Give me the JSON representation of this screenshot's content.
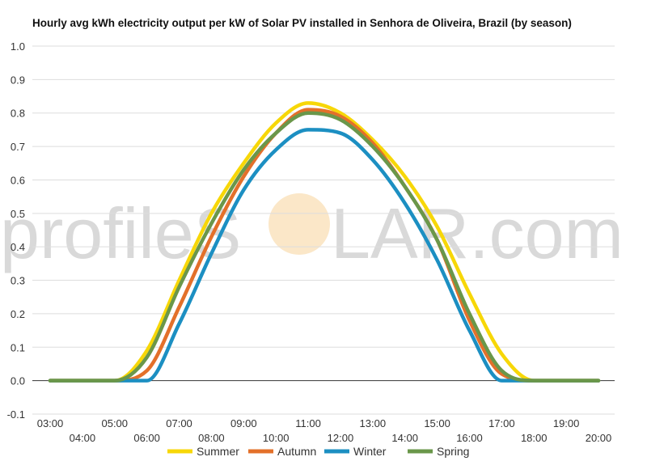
{
  "chart_data": {
    "type": "line",
    "title": "Hourly avg kWh electricity output per kW of Solar PV installed in Senhora de Oliveira, Brazil (by season)",
    "watermark": {
      "left": "profileS",
      "right": "LAR.com"
    },
    "ylim": [
      -0.1,
      1.0
    ],
    "yticks": [
      "-0.1",
      "0.0",
      "0.1",
      "0.2",
      "0.3",
      "0.4",
      "0.5",
      "0.6",
      "0.7",
      "0.8",
      "0.9",
      "1.0"
    ],
    "x": [
      3,
      4,
      5,
      6,
      7,
      8,
      9,
      10,
      11,
      12,
      13,
      14,
      15,
      16,
      17,
      18,
      19,
      20
    ],
    "categories": [
      "03:00",
      "04:00",
      "05:00",
      "06:00",
      "07:00",
      "08:00",
      "09:00",
      "10:00",
      "11:00",
      "12:00",
      "13:00",
      "14:00",
      "15:00",
      "16:00",
      "17:00",
      "18:00",
      "19:00",
      "20:00"
    ],
    "grid": true,
    "legend_position": "bottom",
    "series": [
      {
        "name": "Summer",
        "color": "#f7d708",
        "values": [
          0.0,
          0.0,
          0.0,
          0.09,
          0.3,
          0.5,
          0.65,
          0.77,
          0.83,
          0.8,
          0.72,
          0.61,
          0.46,
          0.26,
          0.08,
          0.0,
          0.0,
          0.0
        ]
      },
      {
        "name": "Autumn",
        "color": "#e3702a",
        "values": [
          0.0,
          0.0,
          0.0,
          0.03,
          0.22,
          0.43,
          0.61,
          0.74,
          0.81,
          0.79,
          0.71,
          0.58,
          0.42,
          0.18,
          0.02,
          0.0,
          0.0,
          0.0
        ]
      },
      {
        "name": "Winter",
        "color": "#1c8fc2",
        "values": [
          0.0,
          0.0,
          0.0,
          0.0,
          0.17,
          0.38,
          0.57,
          0.69,
          0.75,
          0.74,
          0.66,
          0.53,
          0.36,
          0.15,
          0.0,
          0.0,
          0.0,
          0.0
        ]
      },
      {
        "name": "Spring",
        "color": "#6a974a",
        "values": [
          0.0,
          0.0,
          0.0,
          0.07,
          0.28,
          0.47,
          0.63,
          0.74,
          0.8,
          0.78,
          0.7,
          0.58,
          0.42,
          0.2,
          0.03,
          0.0,
          0.0,
          0.0
        ]
      }
    ]
  }
}
